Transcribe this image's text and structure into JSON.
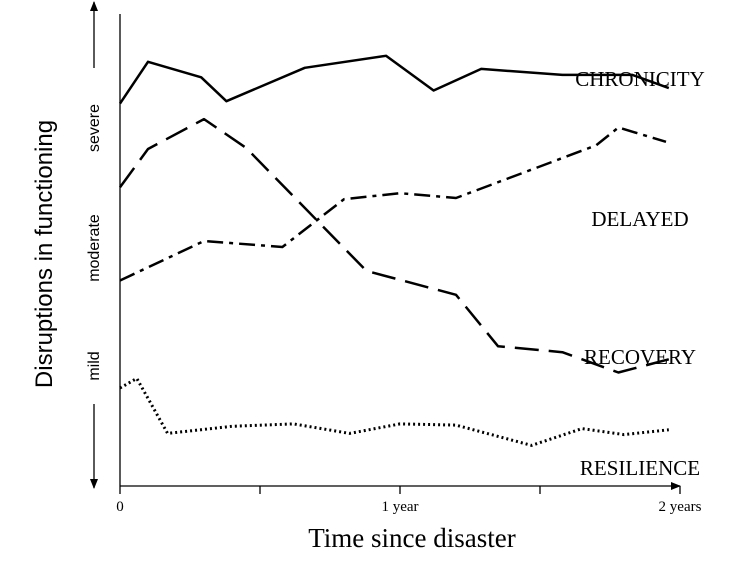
{
  "chart_data": {
    "type": "line",
    "xlabel": "Time since disaster",
    "ylabel": "Disruptions in functioning",
    "x_ticks": [
      {
        "value": 0,
        "label": "0"
      },
      {
        "value": 0.5,
        "label": ""
      },
      {
        "value": 1,
        "label": "1 year"
      },
      {
        "value": 1.5,
        "label": ""
      },
      {
        "value": 2,
        "label": "2 years"
      }
    ],
    "y_levels": [
      {
        "value": 1,
        "label": "mild"
      },
      {
        "value": 2,
        "label": "moderate"
      },
      {
        "value": 3,
        "label": "severe"
      }
    ],
    "xlim": [
      0,
      2
    ],
    "ylim": [
      0,
      4
    ],
    "grid": false,
    "legend": "direct labels at line ends",
    "series": [
      {
        "name": "CHRONICITY",
        "style": "solid",
        "x": [
          0,
          0.1,
          0.29,
          0.38,
          0.66,
          0.95,
          1.12,
          1.29,
          1.58,
          1.83,
          1.96
        ],
        "y": [
          3.2,
          3.55,
          3.42,
          3.22,
          3.5,
          3.6,
          3.31,
          3.49,
          3.44,
          3.44,
          3.33
        ]
      },
      {
        "name": "DELAYED",
        "style": "dash-dot",
        "x": [
          0,
          0.3,
          0.58,
          0.8,
          1.0,
          1.2,
          1.7,
          1.78,
          1.95
        ],
        "y": [
          1.72,
          2.05,
          2.0,
          2.4,
          2.45,
          2.41,
          2.85,
          3.0,
          2.88
        ]
      },
      {
        "name": "RECOVERY",
        "style": "dashed",
        "x": [
          0,
          0.1,
          0.3,
          0.45,
          0.88,
          1.2,
          1.35,
          1.58,
          1.78,
          1.96
        ],
        "y": [
          2.5,
          2.82,
          3.07,
          2.83,
          1.8,
          1.6,
          1.17,
          1.12,
          0.95,
          1.06
        ]
      },
      {
        "name": "RESILIENCE",
        "style": "dotted",
        "x": [
          0,
          0.06,
          0.17,
          0.4,
          0.62,
          0.82,
          1.0,
          1.2,
          1.47,
          1.65,
          1.8,
          1.96
        ],
        "y": [
          0.82,
          0.9,
          0.44,
          0.5,
          0.52,
          0.44,
          0.52,
          0.51,
          0.34,
          0.48,
          0.43,
          0.47
        ]
      }
    ]
  }
}
